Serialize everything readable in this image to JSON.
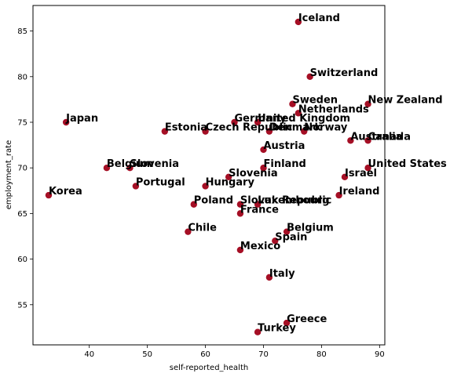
{
  "chart_data": {
    "type": "scatter",
    "xlabel": "self-reported_health",
    "ylabel": "employment_rate",
    "xlim": [
      30.3,
      90.9
    ],
    "ylim": [
      50.6,
      87.8
    ],
    "xticks": [
      40,
      50,
      60,
      70,
      80,
      90
    ],
    "yticks": [
      55,
      60,
      65,
      70,
      75,
      80,
      85
    ],
    "grid": false,
    "legend": "none",
    "marker_color": "#a50f25",
    "points": [
      {
        "label": "Iceland",
        "x": 76,
        "y": 86
      },
      {
        "label": "Switzerland",
        "x": 78,
        "y": 80
      },
      {
        "label": "Sweden",
        "x": 75,
        "y": 77
      },
      {
        "label": "New Zealand",
        "x": 88,
        "y": 77
      },
      {
        "label": "Netherlands",
        "x": 76,
        "y": 76
      },
      {
        "label": "Germany",
        "x": 65,
        "y": 75
      },
      {
        "label": "Japan",
        "x": 36,
        "y": 75
      },
      {
        "label": "United Kingdom",
        "x": 69,
        "y": 75
      },
      {
        "label": "Estonia",
        "x": 53,
        "y": 74
      },
      {
        "label": "Czech Republic",
        "x": 60,
        "y": 74
      },
      {
        "label": "Denmark",
        "x": 71,
        "y": 74
      },
      {
        "label": "Norway",
        "x": 77,
        "y": 74
      },
      {
        "label": "Australia",
        "x": 85,
        "y": 73
      },
      {
        "label": "Canada",
        "x": 88,
        "y": 73
      },
      {
        "label": "Austria",
        "x": 70,
        "y": 72
      },
      {
        "label": "Finland",
        "x": 70,
        "y": 70
      },
      {
        "label": "United States",
        "x": 88,
        "y": 70
      },
      {
        "label": "Belgium",
        "x": 43,
        "y": 70
      },
      {
        "label": "Slovenia",
        "x": 47,
        "y": 70
      },
      {
        "label": "Israel",
        "x": 84,
        "y": 69
      },
      {
        "label": "Slovenia",
        "x": 64,
        "y": 69
      },
      {
        "label": "Portugal",
        "x": 48,
        "y": 68
      },
      {
        "label": "Hungary",
        "x": 60,
        "y": 68
      },
      {
        "label": "Korea",
        "x": 33,
        "y": 67
      },
      {
        "label": "Ireland",
        "x": 83,
        "y": 67
      },
      {
        "label": "Poland",
        "x": 58,
        "y": 66
      },
      {
        "label": "Slovak Republic",
        "x": 66,
        "y": 66
      },
      {
        "label": "Luxembourg",
        "x": 69,
        "y": 66
      },
      {
        "label": "France",
        "x": 66,
        "y": 65
      },
      {
        "label": "Chile",
        "x": 57,
        "y": 63
      },
      {
        "label": "Belgium",
        "x": 74,
        "y": 63
      },
      {
        "label": "Spain",
        "x": 72,
        "y": 62
      },
      {
        "label": "Mexico",
        "x": 66,
        "y": 61
      },
      {
        "label": "Italy",
        "x": 71,
        "y": 58
      },
      {
        "label": "Greece",
        "x": 74,
        "y": 53
      },
      {
        "label": "Turkey",
        "x": 69,
        "y": 52
      }
    ]
  }
}
